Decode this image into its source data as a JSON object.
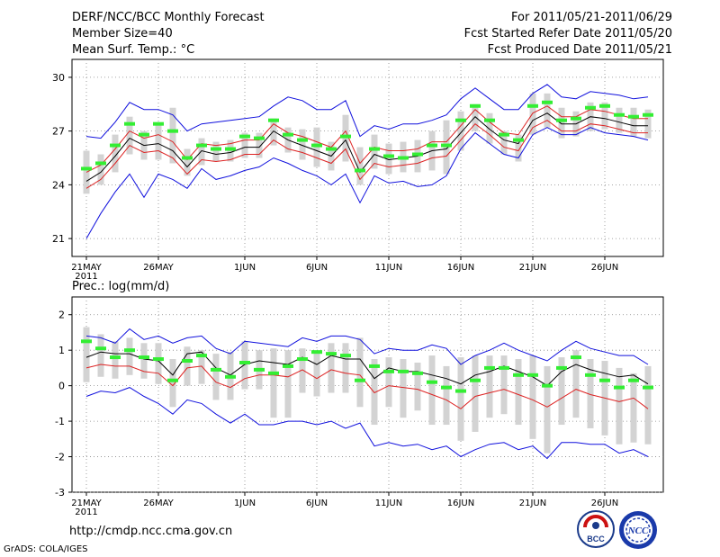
{
  "header": {
    "title": "DERF/NCC/BCC Monthly Forecast",
    "member": "Member Size=40",
    "variable": "Mean Surf. Temp.: °C",
    "period": "For 2011/05/21-2011/06/29",
    "started": "Fcst Started Refer Date 2011/05/20",
    "produced": "Fcst Produced Date 2011/05/21"
  },
  "footer": {
    "url": "http://cmdp.ncc.cma.gov.cn",
    "credit": "GrADS: COLA/IGES",
    "logo_bcc": "BCC",
    "logo_ncc": "NCC"
  },
  "colors": {
    "bar": "#d3d3d3",
    "green": "#33ee33",
    "red": "#dd2222",
    "blue": "#1010dd",
    "mean": "#000000"
  },
  "chart_data": [
    {
      "type": "line",
      "title": "Mean Surf. Temp.: °C",
      "ylim": [
        20,
        31
      ],
      "yticks": [
        21,
        24,
        27,
        30
      ],
      "xlabels": [
        "21MAY",
        "26MAY",
        "1JUN",
        "6JUN",
        "11JUN",
        "16JUN",
        "21JUN",
        "26JUN"
      ],
      "xlabel_index": [
        0,
        5,
        11,
        16,
        21,
        26,
        31,
        36
      ],
      "year_label": "2011",
      "series": [
        {
          "name": "ensemble-mean",
          "values": [
            24.2,
            24.7,
            25.6,
            26.6,
            26.2,
            26.3,
            25.9,
            25.0,
            25.9,
            25.7,
            25.8,
            26.1,
            26.1,
            27.0,
            26.5,
            26.2,
            25.9,
            25.6,
            26.5,
            24.7,
            25.7,
            25.4,
            25.5,
            25.6,
            25.9,
            26.0,
            26.9,
            27.8,
            27.1,
            26.5,
            26.3,
            27.6,
            28.0,
            27.4,
            27.4,
            27.8,
            27.7,
            27.5,
            27.3,
            27.3
          ]
        },
        {
          "name": "lower-red",
          "values": [
            23.8,
            24.3,
            25.2,
            26.2,
            25.8,
            25.9,
            25.5,
            24.6,
            25.4,
            25.3,
            25.4,
            25.7,
            25.7,
            26.5,
            26.0,
            25.8,
            25.5,
            25.2,
            26.0,
            24.3,
            25.2,
            25.0,
            25.1,
            25.2,
            25.5,
            25.6,
            26.5,
            27.4,
            26.8,
            26.1,
            25.9,
            27.2,
            27.6,
            27.0,
            27.0,
            27.4,
            27.3,
            27.1,
            26.9,
            26.9
          ]
        },
        {
          "name": "upper-red",
          "values": [
            24.7,
            25.1,
            26.0,
            27.0,
            26.6,
            26.8,
            26.4,
            25.4,
            26.3,
            26.2,
            26.3,
            26.5,
            26.5,
            27.4,
            26.9,
            26.7,
            26.4,
            26.1,
            27.0,
            25.2,
            26.1,
            25.9,
            25.9,
            26.0,
            26.4,
            26.4,
            27.3,
            28.2,
            27.5,
            26.9,
            26.8,
            28.0,
            28.4,
            27.8,
            27.8,
            28.2,
            28.1,
            27.9,
            27.7,
            27.7
          ]
        },
        {
          "name": "min-blue",
          "values": [
            21.0,
            22.4,
            23.6,
            24.6,
            23.3,
            24.6,
            24.3,
            23.8,
            24.9,
            24.3,
            24.5,
            24.8,
            25.0,
            25.5,
            25.2,
            24.8,
            24.5,
            24.0,
            24.6,
            23.0,
            24.5,
            24.1,
            24.2,
            23.9,
            24.0,
            24.5,
            26.0,
            26.9,
            26.3,
            25.7,
            25.5,
            26.8,
            27.2,
            26.8,
            26.8,
            27.2,
            26.9,
            26.8,
            26.7,
            26.5
          ]
        },
        {
          "name": "max-blue",
          "values": [
            26.7,
            26.6,
            27.5,
            28.6,
            28.2,
            28.2,
            27.9,
            27.0,
            27.4,
            27.5,
            27.6,
            27.7,
            27.8,
            28.4,
            28.9,
            28.7,
            28.2,
            28.2,
            28.7,
            26.7,
            27.3,
            27.1,
            27.4,
            27.4,
            27.6,
            27.9,
            28.8,
            29.4,
            28.8,
            28.2,
            28.2,
            29.1,
            29.6,
            28.9,
            28.8,
            29.2,
            29.1,
            29.0,
            28.8,
            28.9
          ]
        },
        {
          "name": "green-marker",
          "values": [
            24.9,
            25.2,
            26.2,
            27.4,
            26.8,
            27.4,
            27.0,
            25.5,
            26.2,
            26.0,
            26.0,
            26.7,
            26.6,
            27.6,
            26.8,
            26.5,
            26.2,
            26.0,
            26.7,
            24.8,
            26.0,
            25.6,
            25.5,
            25.7,
            26.2,
            26.2,
            27.6,
            28.4,
            27.6,
            26.8,
            26.5,
            28.4,
            28.6,
            27.6,
            27.7,
            28.3,
            28.4,
            27.9,
            27.8,
            27.9
          ]
        },
        {
          "name": "bar-low",
          "values": [
            23.5,
            24.0,
            24.7,
            25.7,
            25.4,
            25.4,
            25.2,
            24.5,
            25.1,
            25.3,
            25.3,
            25.5,
            25.5,
            26.2,
            25.8,
            25.4,
            25.0,
            24.8,
            25.3,
            24.0,
            24.9,
            24.6,
            24.7,
            24.7,
            24.8,
            24.6,
            25.9,
            27.0,
            26.3,
            25.7,
            25.3,
            26.8,
            27.2,
            26.6,
            26.7,
            27.0,
            27.1,
            26.9,
            26.7,
            26.6
          ]
        },
        {
          "name": "bar-high",
          "values": [
            25.9,
            25.7,
            26.8,
            27.8,
            27.0,
            27.4,
            28.3,
            26.0,
            26.6,
            26.4,
            26.5,
            26.9,
            26.9,
            27.7,
            27.2,
            27.1,
            27.2,
            26.4,
            27.9,
            26.1,
            26.8,
            26.3,
            26.4,
            26.5,
            27.0,
            27.6,
            28.1,
            28.5,
            28.0,
            27.0,
            26.8,
            29.1,
            29.1,
            28.3,
            28.1,
            28.6,
            28.6,
            28.3,
            28.3,
            28.2
          ]
        }
      ]
    },
    {
      "type": "line",
      "title": "Prec.: log(mm/d)",
      "ylim": [
        -3,
        2.5
      ],
      "yticks": [
        -3,
        -2,
        -1,
        0,
        1,
        2
      ],
      "xlabels": [
        "21MAY",
        "26MAY",
        "1JUN",
        "6JUN",
        "11JUN",
        "16JUN",
        "21JUN",
        "26JUN"
      ],
      "xlabel_index": [
        0,
        5,
        11,
        16,
        21,
        26,
        31,
        36
      ],
      "year_label": "2011",
      "series": [
        {
          "name": "ensemble-mean",
          "values": [
            0.8,
            0.95,
            0.9,
            0.9,
            0.75,
            0.7,
            0.3,
            0.9,
            0.95,
            0.5,
            0.3,
            0.6,
            0.7,
            0.65,
            0.6,
            0.8,
            0.6,
            0.85,
            0.75,
            0.75,
            0.2,
            0.5,
            0.4,
            0.4,
            0.3,
            0.2,
            0.05,
            0.3,
            0.4,
            0.55,
            0.4,
            0.25,
            0.0,
            0.4,
            0.6,
            0.45,
            0.35,
            0.25,
            0.3,
            0.05
          ]
        },
        {
          "name": "lower-red",
          "values": [
            0.5,
            0.6,
            0.55,
            0.55,
            0.4,
            0.35,
            0.0,
            0.5,
            0.55,
            0.1,
            -0.05,
            0.2,
            0.3,
            0.3,
            0.25,
            0.45,
            0.2,
            0.45,
            0.35,
            0.3,
            -0.2,
            0.0,
            -0.05,
            -0.1,
            -0.25,
            -0.4,
            -0.65,
            -0.3,
            -0.2,
            -0.1,
            -0.25,
            -0.4,
            -0.6,
            -0.35,
            -0.1,
            -0.25,
            -0.35,
            -0.45,
            -0.35,
            -0.65
          ]
        },
        {
          "name": "min-blue",
          "values": [
            -0.3,
            -0.15,
            -0.2,
            -0.05,
            -0.3,
            -0.5,
            -0.8,
            -0.4,
            -0.5,
            -0.8,
            -1.05,
            -0.8,
            -1.1,
            -1.1,
            -1.0,
            -1.0,
            -1.1,
            -1.0,
            -1.2,
            -1.05,
            -1.7,
            -1.6,
            -1.7,
            -1.65,
            -1.8,
            -1.7,
            -2.0,
            -1.8,
            -1.65,
            -1.6,
            -1.8,
            -1.7,
            -2.05,
            -1.6,
            -1.6,
            -1.65,
            -1.65,
            -1.9,
            -1.8,
            -2.0
          ]
        },
        {
          "name": "max-blue",
          "values": [
            1.4,
            1.35,
            1.2,
            1.6,
            1.3,
            1.4,
            1.2,
            1.35,
            1.4,
            1.05,
            0.9,
            1.25,
            1.2,
            1.15,
            1.1,
            1.35,
            1.25,
            1.4,
            1.4,
            1.3,
            0.9,
            1.05,
            1.0,
            1.0,
            1.15,
            1.05,
            0.6,
            0.85,
            1.0,
            1.2,
            1.0,
            0.85,
            0.7,
            1.0,
            1.25,
            1.05,
            0.95,
            0.85,
            0.85,
            0.6
          ]
        },
        {
          "name": "green-marker",
          "values": [
            1.25,
            1.05,
            0.8,
            1.0,
            0.8,
            0.75,
            0.15,
            0.7,
            0.85,
            0.45,
            0.25,
            0.65,
            0.45,
            0.35,
            0.55,
            0.75,
            0.95,
            0.9,
            0.85,
            0.15,
            0.55,
            0.4,
            0.4,
            0.35,
            0.1,
            -0.05,
            -0.15,
            0.15,
            0.5,
            0.5,
            0.3,
            0.3,
            0.0,
            0.5,
            0.8,
            0.3,
            0.15,
            -0.05,
            0.15,
            -0.05
          ]
        },
        {
          "name": "bar-low",
          "values": [
            0.1,
            0.25,
            0.2,
            0.3,
            0.2,
            0.05,
            -0.6,
            0.0,
            0.05,
            -0.4,
            -0.4,
            -0.1,
            -0.1,
            -0.9,
            -0.9,
            -0.2,
            -0.3,
            -0.2,
            -0.2,
            -0.6,
            -1.1,
            -0.6,
            -0.9,
            -0.7,
            -1.1,
            -1.1,
            -1.55,
            -1.3,
            -0.9,
            -0.8,
            -1.1,
            -1.5,
            -1.9,
            -1.1,
            -0.9,
            -1.2,
            -1.4,
            -1.65,
            -1.6,
            -1.65
          ]
        },
        {
          "name": "bar-high",
          "values": [
            1.65,
            1.45,
            1.25,
            1.35,
            1.2,
            1.2,
            0.75,
            1.1,
            1.0,
            0.9,
            0.95,
            1.25,
            1.0,
            1.05,
            1.0,
            1.05,
            0.95,
            1.2,
            1.2,
            1.35,
            0.75,
            0.8,
            0.75,
            0.65,
            0.85,
            0.55,
            0.8,
            0.85,
            0.85,
            0.85,
            0.75,
            0.85,
            0.55,
            0.8,
            1.0,
            0.75,
            0.7,
            0.5,
            0.35,
            0.55
          ]
        }
      ]
    }
  ]
}
